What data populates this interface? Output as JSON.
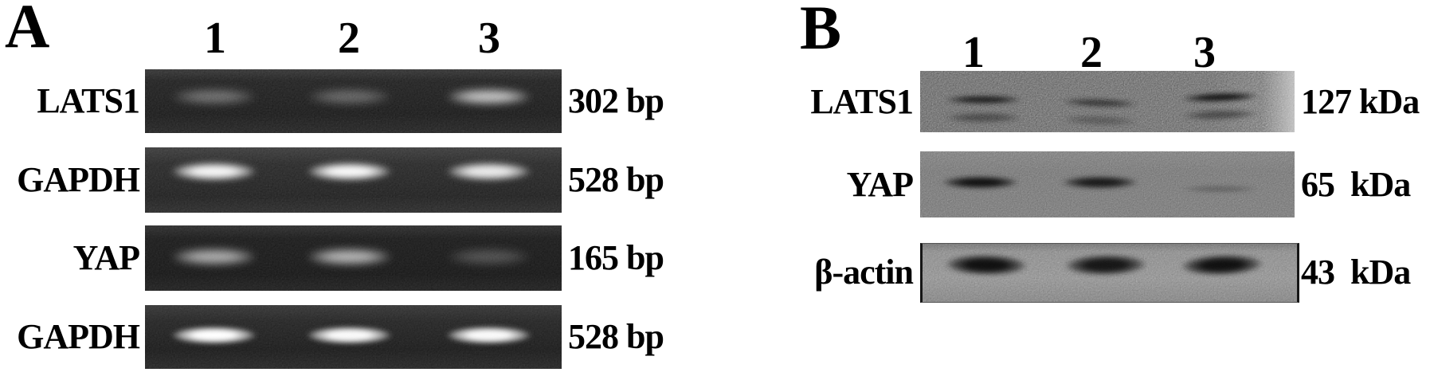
{
  "panels": {
    "A": {
      "label": "A",
      "lane_numbers": [
        "1",
        "2",
        "3"
      ],
      "rows": [
        {
          "gene": "LATS1",
          "size": "302 bp",
          "band_intensities": [
            0.34,
            0.3,
            0.72
          ]
        },
        {
          "gene": "GAPDH",
          "size": "528 bp",
          "band_intensities": [
            0.96,
            0.98,
            0.9
          ]
        },
        {
          "gene": "YAP",
          "size": "165 bp",
          "band_intensities": [
            0.62,
            0.66,
            0.22
          ]
        },
        {
          "gene": "GAPDH",
          "size": "528 bp",
          "band_intensities": [
            1.0,
            0.98,
            0.98
          ]
        }
      ]
    },
    "B": {
      "label": "B",
      "lane_numbers": [
        "1",
        "2",
        "3"
      ],
      "rows": [
        {
          "gene": "LATS1",
          "size": "127 kDa",
          "band_intensities": [
            0.82,
            0.58,
            0.92
          ],
          "doublet": true
        },
        {
          "gene": "YAP",
          "size": "65  kDa",
          "band_intensities": [
            0.95,
            0.88,
            0.32
          ]
        },
        {
          "gene": "β-actin",
          "size": "43  kDa",
          "band_intensities": [
            0.97,
            0.93,
            0.97
          ]
        }
      ]
    }
  }
}
